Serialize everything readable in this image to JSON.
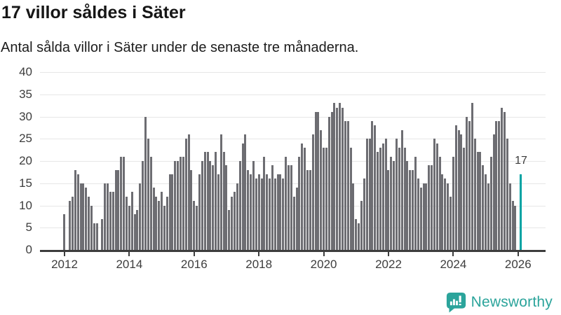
{
  "header": {
    "title": "17 villor såldes i Säter",
    "subtitle": "Antal sålda villor i Säter under de senaste tre månaderna."
  },
  "annotation": {
    "latest_label": "17"
  },
  "footer": {
    "brand": "Newsworthy",
    "logo_icon": "bar-chart-speech-bubble-icon"
  },
  "colors": {
    "bar": "#6d6d72",
    "highlight": "#00a3a3",
    "brand_teal": "#2ba49b",
    "gridline": "#e7e7e7",
    "axis": "#3d3d3d",
    "text": "#161616"
  },
  "chart_data": {
    "type": "bar",
    "title": "17 villor såldes i Säter",
    "subtitle": "Antal sålda villor i Säter under de senaste tre månaderna.",
    "ylabel": "",
    "xlabel": "",
    "ylim": [
      0,
      40
    ],
    "grid": "horizontal",
    "legend": "none",
    "unit": "sålda villor (rullande 3 månader)",
    "start_month": "2012-01",
    "frequency": "monthly",
    "x_tick_years": [
      "2012",
      "2014",
      "2016",
      "2018",
      "2020",
      "2022",
      "2024",
      "2026"
    ],
    "y_ticks": [
      0,
      5,
      10,
      15,
      20,
      25,
      30,
      35,
      40
    ],
    "highlight_index": 169,
    "highlight_value": 17,
    "values": [
      8,
      null,
      11,
      12,
      18,
      17,
      15,
      15,
      14,
      12,
      10,
      6,
      6,
      null,
      7,
      15,
      15,
      13,
      13,
      18,
      18,
      21,
      21,
      12,
      10,
      13,
      8,
      9,
      15,
      20,
      30,
      25,
      21,
      14,
      12,
      11,
      13,
      10,
      12,
      17,
      17,
      20,
      20,
      21,
      21,
      25,
      26,
      18,
      11,
      10,
      17,
      20,
      22,
      22,
      20,
      19,
      22,
      17,
      26,
      22,
      19,
      9,
      12,
      13,
      15,
      20,
      24,
      26,
      18,
      17,
      20,
      16,
      17,
      16,
      21,
      17,
      16,
      19,
      16,
      17,
      17,
      16,
      21,
      19,
      19,
      12,
      14,
      21,
      24,
      23,
      18,
      18,
      26,
      31,
      31,
      27,
      23,
      23,
      30,
      31,
      33,
      32,
      33,
      32,
      29,
      29,
      23,
      15,
      7,
      6,
      11,
      16,
      25,
      25,
      29,
      28,
      22,
      23,
      24,
      25,
      18,
      21,
      20,
      25,
      23,
      27,
      23,
      20,
      18,
      18,
      21,
      16,
      14,
      15,
      15,
      19,
      19,
      25,
      24,
      21,
      17,
      16,
      15,
      12,
      21,
      28,
      27,
      26,
      23,
      30,
      29,
      33,
      25,
      22,
      22,
      19,
      17,
      15,
      21,
      26,
      29,
      29,
      32,
      31,
      25,
      15,
      11,
      10,
      null,
      17
    ]
  }
}
